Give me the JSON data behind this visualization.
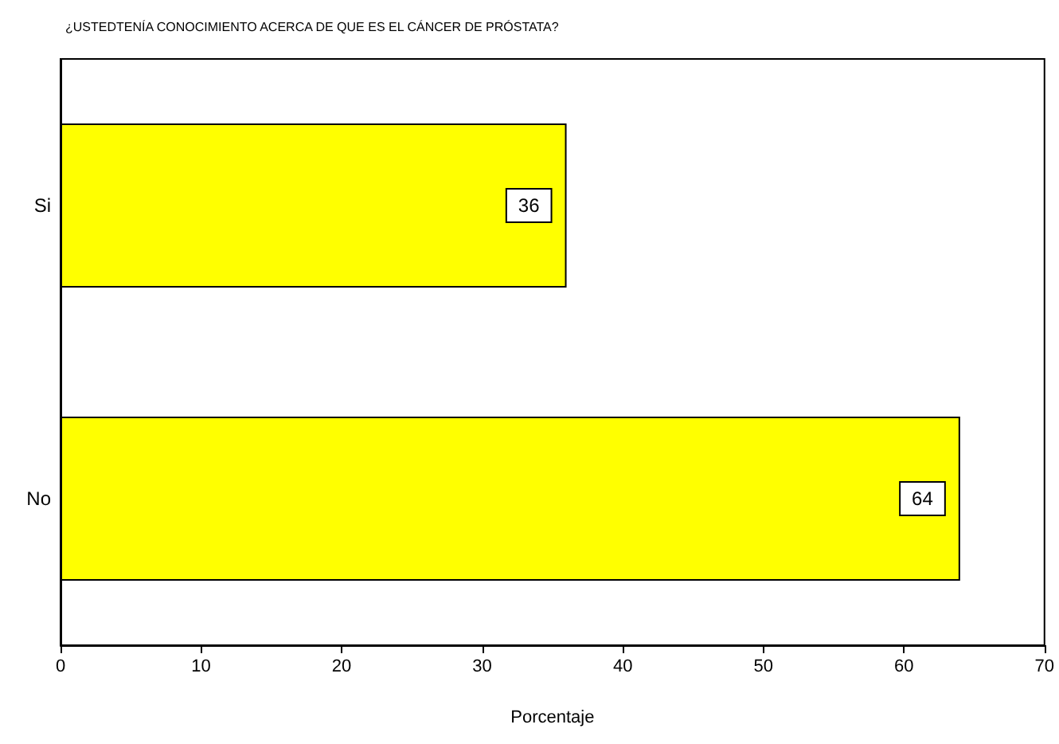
{
  "chart_data": {
    "type": "bar",
    "orientation": "horizontal",
    "title": "¿USTEDTENÍA CONOCIMIENTO ACERCA DE QUE ES EL CÁNCER DE PRÓSTATA?",
    "xlabel": "Porcentaje",
    "categories": [
      "Si",
      "No"
    ],
    "values": [
      36,
      64
    ],
    "color": "#ffff00",
    "xlim": [
      0,
      70
    ],
    "xticks": [
      0,
      10,
      20,
      30,
      40,
      50,
      60,
      70
    ],
    "grid": false,
    "data_labels": true
  }
}
